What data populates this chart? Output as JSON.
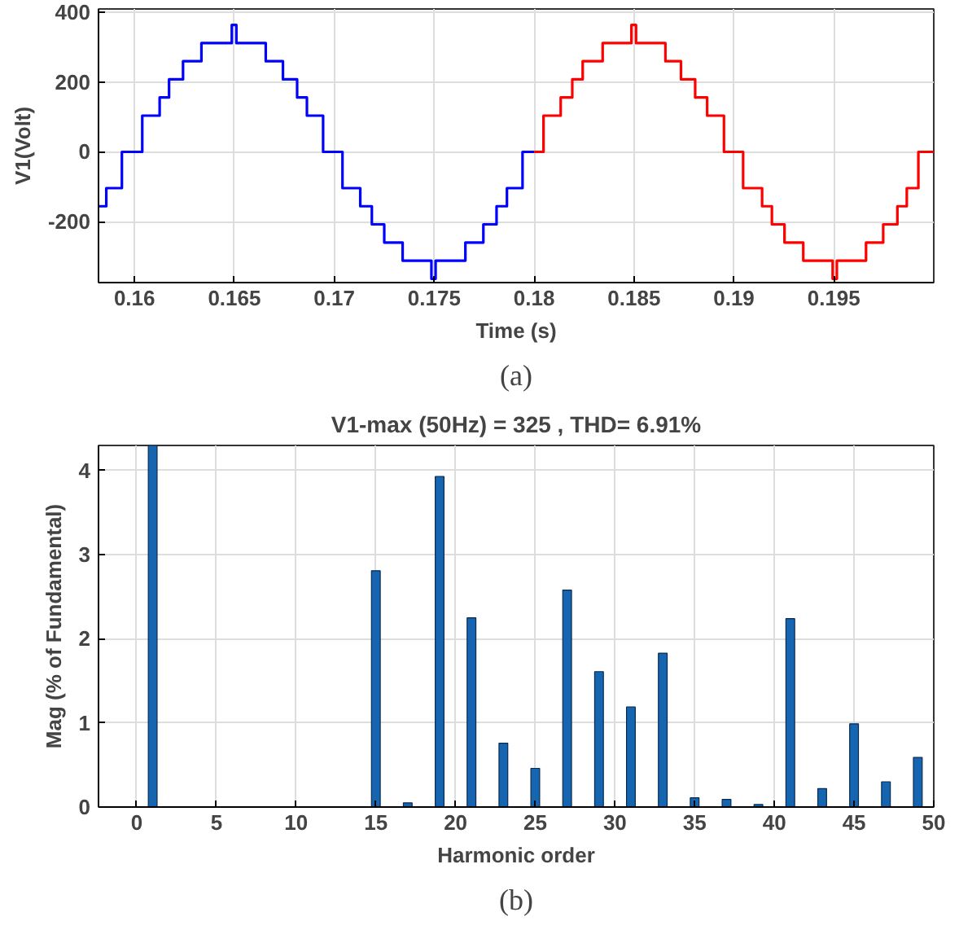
{
  "chart_data": [
    {
      "type": "step",
      "xlabel": "Time (s)",
      "ylabel": "V1(Volt)",
      "xlim": [
        0.1582,
        0.2
      ],
      "ylim": [
        -375,
        410
      ],
      "xticks": [
        0.16,
        0.165,
        0.17,
        0.175,
        0.18,
        0.185,
        0.19,
        0.195
      ],
      "yticks": [
        -200,
        0,
        200,
        400
      ],
      "grid": true,
      "annotations": [
        "(a)"
      ],
      "series": [
        {
          "color": "#0000ff",
          "x": [
            0.1582,
            0.15859,
            0.15937,
            0.16039,
            0.16126,
            0.16173,
            0.16243,
            0.16335,
            0.16487,
            0.1651,
            0.16657,
            0.16743,
            0.16814,
            0.16863,
            0.16944,
            0.17041,
            0.1713,
            0.17188,
            0.1725,
            0.17342,
            0.17486,
            0.17507,
            0.17656,
            0.17746,
            0.17812,
            0.17864,
            0.17942,
            0.18
          ],
          "values": [
            -156,
            -104,
            0,
            104,
            156,
            208,
            260,
            312,
            364,
            312,
            260,
            208,
            156,
            104,
            0,
            -104,
            -156,
            -208,
            -260,
            -312,
            -364,
            -312,
            -260,
            -208,
            -156,
            -104,
            0,
            0
          ]
        },
        {
          "color": "#ff0000",
          "x": [
            0.18,
            0.18047,
            0.18133,
            0.18191,
            0.18243,
            0.18343,
            0.18487,
            0.1851,
            0.18657,
            0.18735,
            0.18806,
            0.18866,
            0.1895,
            0.19046,
            0.19141,
            0.1919,
            0.19253,
            0.19347,
            0.19494,
            0.19515,
            0.19661,
            0.19747,
            0.19818,
            0.19865,
            0.19923,
            0.2
          ],
          "values": [
            0,
            104,
            156,
            208,
            260,
            312,
            364,
            312,
            260,
            208,
            156,
            104,
            0,
            -104,
            -156,
            -208,
            -260,
            -312,
            -364,
            -312,
            -260,
            -208,
            -156,
            -104,
            0,
            0
          ]
        }
      ]
    },
    {
      "type": "bar",
      "title": "V1-max (50Hz) = 325 , THD= 6.91%",
      "xlabel": "Harmonic order",
      "ylabel": "Mag (% of Fundamental)",
      "xlim": [
        -2.4,
        50
      ],
      "ylim": [
        0,
        4.3
      ],
      "xticks": [
        0,
        5,
        10,
        15,
        20,
        25,
        30,
        35,
        40,
        45,
        50
      ],
      "yticks": [
        0,
        1,
        2,
        3,
        4
      ],
      "grid": true,
      "annotations": [
        "(b)"
      ],
      "color": "#1565b0",
      "x": [
        1,
        15,
        17,
        19,
        21,
        23,
        25,
        27,
        29,
        31,
        33,
        35,
        37,
        39,
        41,
        43,
        45,
        47,
        49
      ],
      "values": [
        4.3,
        2.81,
        0.05,
        3.93,
        2.25,
        0.76,
        0.46,
        2.58,
        1.61,
        1.19,
        1.83,
        0.11,
        0.09,
        0.03,
        2.24,
        0.22,
        0.99,
        0.3,
        0.59
      ]
    }
  ]
}
